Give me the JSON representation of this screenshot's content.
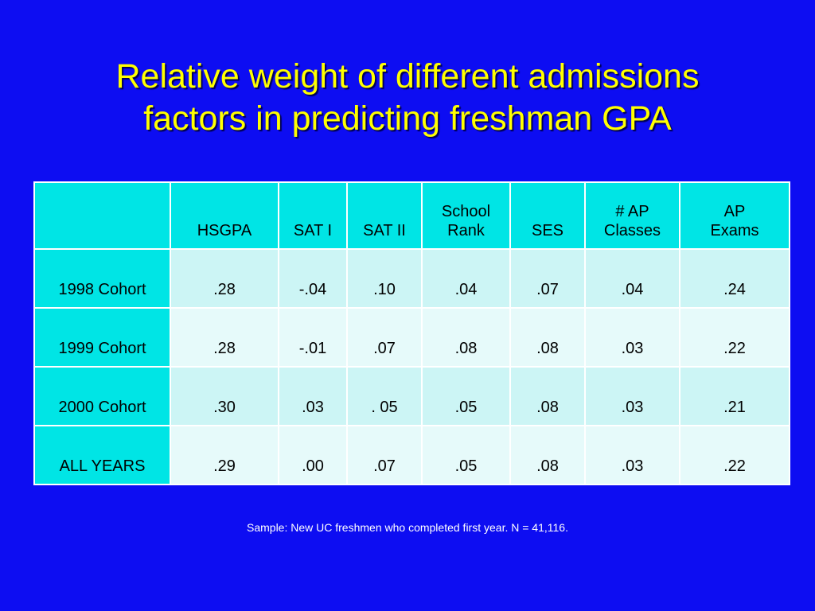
{
  "title": {
    "line1": "Relative weight of different admissions",
    "line2": "factors in predicting freshman GPA"
  },
  "table": {
    "headers": [
      "",
      "HSGPA",
      "SAT I",
      "SAT II",
      "School\nRank",
      "SES",
      "# AP\nClasses",
      "AP\nExams"
    ],
    "rows": [
      {
        "label": "1998 Cohort",
        "values": [
          ".28",
          "-.04",
          ".10",
          ".04",
          ".07",
          ".04",
          ".24"
        ],
        "bold": [
          false,
          false,
          false,
          false,
          false,
          true,
          true
        ]
      },
      {
        "label": "1999 Cohort",
        "values": [
          ".28",
          "-.01",
          ".07",
          ".08",
          ".08",
          ".03",
          ".22"
        ],
        "bold": [
          false,
          false,
          false,
          false,
          false,
          true,
          true
        ]
      },
      {
        "label": "2000 Cohort",
        "values": [
          ".30",
          ".03",
          ". 05",
          ".05",
          ".08",
          ".03",
          ".21"
        ],
        "bold": [
          false,
          false,
          false,
          false,
          false,
          true,
          true
        ]
      },
      {
        "label": "ALL YEARS",
        "values": [
          ".29",
          ".00",
          ".07",
          ".05",
          ".08",
          ".03",
          ".22"
        ],
        "bold": [
          true,
          true,
          true,
          true,
          true,
          true,
          true
        ]
      }
    ]
  },
  "note": "Sample:  New UC freshmen  who completed first year.  N = 41,116.",
  "colors": {
    "background": "#0d0df2",
    "title": "#ffff00",
    "header_cell": "#00e5e5",
    "row_light": "#ccf5f5",
    "row_pale": "#e6fafa"
  }
}
